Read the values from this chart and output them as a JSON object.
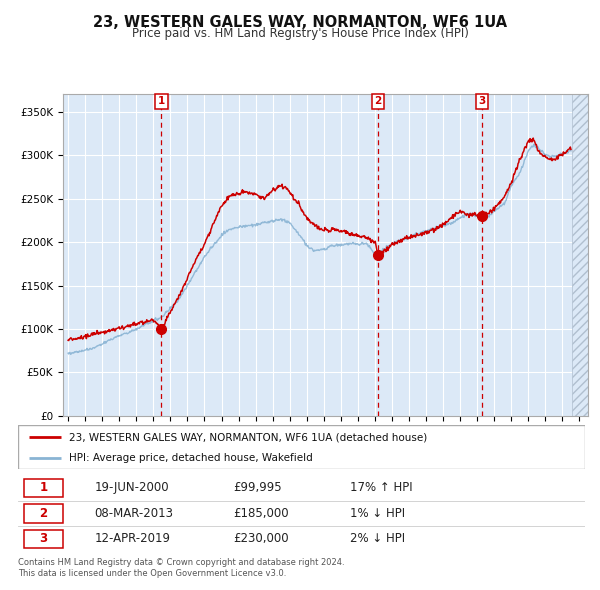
{
  "title": "23, WESTERN GALES WAY, NORMANTON, WF6 1UA",
  "subtitle": "Price paid vs. HM Land Registry's House Price Index (HPI)",
  "background_color": "#dce9f7",
  "grid_color": "#ffffff",
  "red_line_color": "#cc0000",
  "blue_line_color": "#8ab4d4",
  "dashed_line_color": "#cc0000",
  "marker_color": "#cc0000",
  "ylim": [
    0,
    370000
  ],
  "yticks": [
    0,
    50000,
    100000,
    150000,
    200000,
    250000,
    300000,
    350000
  ],
  "ytick_labels": [
    "£0",
    "£50K",
    "£100K",
    "£150K",
    "£200K",
    "£250K",
    "£300K",
    "£350K"
  ],
  "xlim_start": 1994.7,
  "xlim_end": 2025.5,
  "xticks": [
    1995,
    1996,
    1997,
    1998,
    1999,
    2000,
    2001,
    2002,
    2003,
    2004,
    2005,
    2006,
    2007,
    2008,
    2009,
    2010,
    2011,
    2012,
    2013,
    2014,
    2015,
    2016,
    2017,
    2018,
    2019,
    2020,
    2021,
    2022,
    2023,
    2024,
    2025
  ],
  "sale_dates": [
    2000.47,
    2013.19,
    2019.28
  ],
  "sale_prices": [
    99995,
    185000,
    230000
  ],
  "sale_labels": [
    "1",
    "2",
    "3"
  ],
  "legend_line1": "23, WESTERN GALES WAY, NORMANTON, WF6 1UA (detached house)",
  "legend_line2": "HPI: Average price, detached house, Wakefield",
  "table_data": [
    [
      "1",
      "19-JUN-2000",
      "£99,995",
      "17% ↑ HPI"
    ],
    [
      "2",
      "08-MAR-2013",
      "£185,000",
      "1% ↓ HPI"
    ],
    [
      "3",
      "12-APR-2019",
      "£230,000",
      "2% ↓ HPI"
    ]
  ],
  "footer": "Contains HM Land Registry data © Crown copyright and database right 2024.\nThis data is licensed under the Open Government Licence v3.0.",
  "hpi_key_years": [
    1995,
    1995.5,
    1996,
    1996.5,
    1997,
    1997.5,
    1998,
    1998.5,
    1999,
    1999.5,
    2000,
    2000.5,
    2001,
    2001.5,
    2002,
    2002.5,
    2003,
    2003.5,
    2004,
    2004.5,
    2005,
    2005.5,
    2006,
    2006.5,
    2007,
    2007.3,
    2007.6,
    2008,
    2008.5,
    2009,
    2009.5,
    2010,
    2010.5,
    2011,
    2011.5,
    2012,
    2012.5,
    2013,
    2013.5,
    2014,
    2014.5,
    2015,
    2015.5,
    2016,
    2016.5,
    2017,
    2017.5,
    2018,
    2018.5,
    2019,
    2019.5,
    2020,
    2020.3,
    2020.6,
    2021,
    2021.5,
    2022,
    2022.3,
    2022.6,
    2023,
    2023.5,
    2024,
    2024.5
  ],
  "hpi_key_vals": [
    72000,
    73500,
    75500,
    78000,
    83000,
    88000,
    92500,
    96000,
    100000,
    105000,
    109500,
    114000,
    124000,
    134000,
    150000,
    167000,
    183000,
    196000,
    208000,
    215000,
    217000,
    219000,
    220000,
    222000,
    224000,
    226000,
    226000,
    222000,
    210000,
    196000,
    190000,
    192000,
    196000,
    197000,
    198000,
    198000,
    198500,
    186000,
    192000,
    198000,
    202000,
    206000,
    210000,
    213000,
    216000,
    219000,
    222000,
    228000,
    233000,
    230000,
    228000,
    235000,
    240000,
    245000,
    265000,
    280000,
    305000,
    312000,
    308000,
    300000,
    298000,
    302000,
    305000
  ],
  "red_key_years": [
    1995,
    1995.5,
    1996,
    1996.5,
    1997,
    1997.5,
    1998,
    1998.5,
    1999,
    1999.5,
    2000,
    2000.47,
    2000.5,
    2001,
    2001.5,
    2002,
    2002.5,
    2003,
    2003.5,
    2004,
    2004.5,
    2005,
    2005.5,
    2006,
    2006.5,
    2007,
    2007.5,
    2007.75,
    2008,
    2008.5,
    2009,
    2009.5,
    2010,
    2010.5,
    2011,
    2011.5,
    2012,
    2012.5,
    2013,
    2013.19,
    2013.5,
    2014,
    2014.5,
    2015,
    2015.5,
    2016,
    2016.5,
    2017,
    2017.5,
    2018,
    2018.5,
    2019,
    2019.28,
    2019.5,
    2020,
    2020.5,
    2021,
    2021.5,
    2022,
    2022.3,
    2022.6,
    2023,
    2023.5,
    2024,
    2024.5
  ],
  "red_key_vals": [
    88000,
    89000,
    92000,
    93500,
    96000,
    99000,
    101500,
    103500,
    106000,
    108000,
    110000,
    99995,
    100000,
    120000,
    138000,
    158000,
    180000,
    198000,
    220000,
    242000,
    253000,
    256000,
    258000,
    254000,
    250000,
    260000,
    265000,
    263000,
    257000,
    245000,
    228000,
    218000,
    214000,
    215000,
    213000,
    210000,
    207000,
    205000,
    200000,
    185000,
    190000,
    197000,
    202000,
    205000,
    208000,
    211000,
    215000,
    220000,
    228000,
    235000,
    232000,
    231000,
    230000,
    233000,
    238000,
    250000,
    268000,
    296000,
    316000,
    318000,
    305000,
    298000,
    295000,
    302000,
    308000
  ]
}
